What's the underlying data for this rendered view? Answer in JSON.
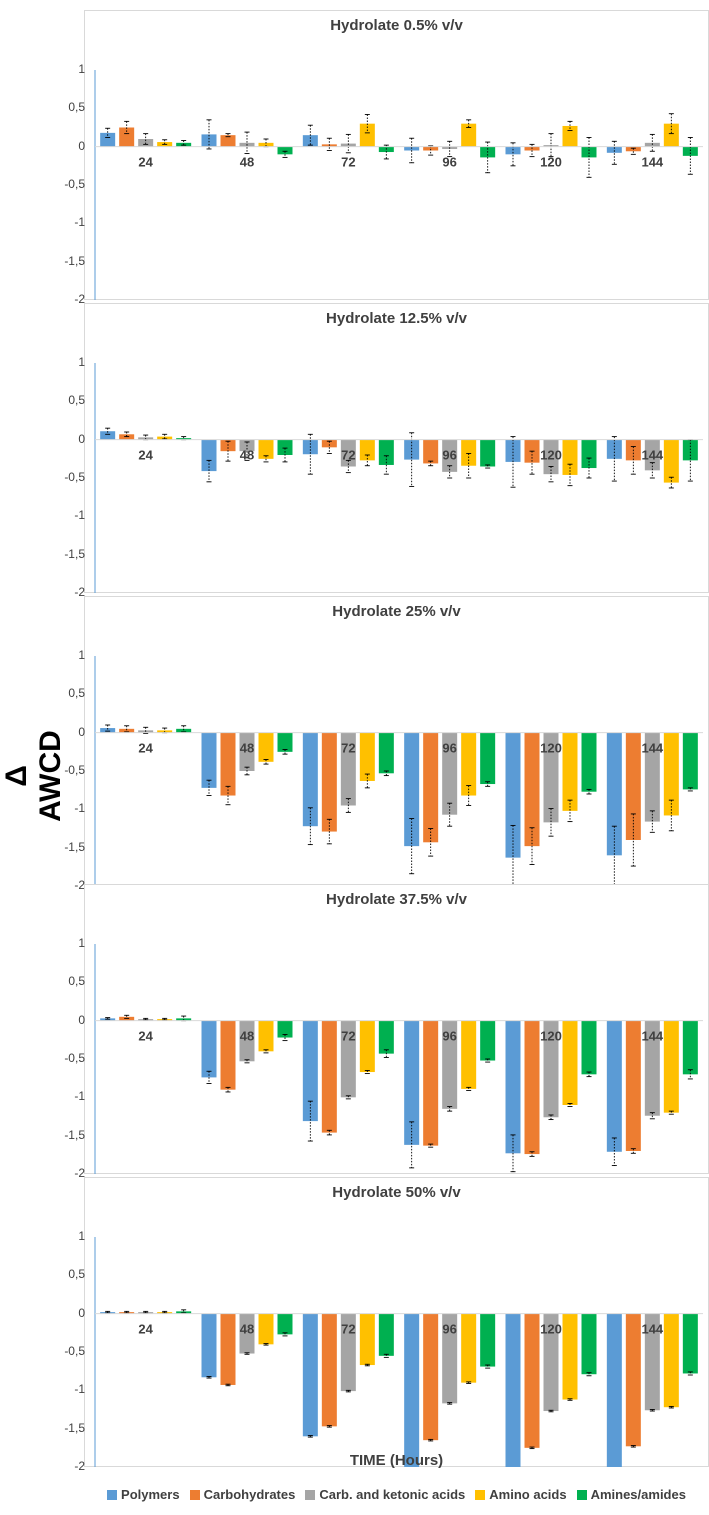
{
  "y_axis_label": "Δ AWCD",
  "x_axis_label": "TIME (Hours)",
  "chart_data": [
    {
      "type": "bar",
      "title": "Hydrolate 0.5% v/v",
      "categories": [
        "24",
        "48",
        "72",
        "96",
        "120",
        "144"
      ],
      "ylim": [
        -2,
        1
      ],
      "yticks": [
        "1",
        "0,5",
        "0",
        "-0,5",
        "-1",
        "-1,5",
        "-2"
      ],
      "grid": false,
      "series": [
        {
          "name": "Polymers",
          "color": "#5b9bd5",
          "values": [
            0.18,
            0.16,
            0.15,
            -0.05,
            -0.1,
            -0.08
          ],
          "errors": [
            0.06,
            0.19,
            0.13,
            0.16,
            0.15,
            0.15
          ]
        },
        {
          "name": "Carbohydrates",
          "color": "#ed7d31",
          "values": [
            0.25,
            0.15,
            0.03,
            -0.05,
            -0.05,
            -0.06
          ],
          "errors": [
            0.08,
            0.02,
            0.08,
            0.06,
            0.08,
            0.04
          ]
        },
        {
          "name": "Carb. and ketonic acids",
          "color": "#a5a5a5",
          "values": [
            0.1,
            0.05,
            0.04,
            -0.03,
            0.02,
            0.05
          ],
          "errors": [
            0.07,
            0.14,
            0.12,
            0.1,
            0.15,
            0.11
          ]
        },
        {
          "name": "Amino acids",
          "color": "#ffc000",
          "values": [
            0.06,
            0.05,
            0.3,
            0.3,
            0.27,
            0.3
          ],
          "errors": [
            0.03,
            0.05,
            0.12,
            0.05,
            0.06,
            0.13
          ]
        },
        {
          "name": "Amines/amides",
          "color": "#00b050",
          "values": [
            0.05,
            -0.1,
            -0.07,
            -0.14,
            -0.14,
            -0.12
          ],
          "errors": [
            0.03,
            0.04,
            0.09,
            0.2,
            0.26,
            0.24
          ]
        }
      ]
    },
    {
      "type": "bar",
      "title": "Hydrolate 12.5% v/v",
      "categories": [
        "24",
        "48",
        "72",
        "96",
        "120",
        "144"
      ],
      "ylim": [
        -2,
        1
      ],
      "yticks": [
        "1",
        "0,5",
        "0",
        "-0,5",
        "-1",
        "-1,5",
        "-2"
      ],
      "grid": false,
      "series": [
        {
          "name": "Polymers",
          "color": "#5b9bd5",
          "values": [
            0.11,
            -0.41,
            -0.19,
            -0.26,
            -0.29,
            -0.25
          ],
          "errors": [
            0.04,
            0.14,
            0.26,
            0.35,
            0.33,
            0.29
          ]
        },
        {
          "name": "Carbohydrates",
          "color": "#ed7d31",
          "values": [
            0.07,
            -0.15,
            -0.1,
            -0.31,
            -0.3,
            -0.27
          ],
          "errors": [
            0.03,
            0.13,
            0.08,
            0.03,
            0.15,
            0.18
          ]
        },
        {
          "name": "Carb. and ketonic acids",
          "color": "#a5a5a5",
          "values": [
            0.03,
            -0.15,
            -0.35,
            -0.42,
            -0.45,
            -0.4
          ],
          "errors": [
            0.03,
            0.12,
            0.08,
            0.08,
            0.1,
            0.1
          ]
        },
        {
          "name": "Amino acids",
          "color": "#ffc000",
          "values": [
            0.04,
            -0.25,
            -0.27,
            -0.34,
            -0.46,
            -0.56
          ],
          "errors": [
            0.03,
            0.04,
            0.07,
            0.16,
            0.14,
            0.07
          ]
        },
        {
          "name": "Amines/amides",
          "color": "#00b050",
          "values": [
            0.02,
            -0.2,
            -0.33,
            -0.35,
            -0.37,
            -0.27
          ],
          "errors": [
            0.02,
            0.09,
            0.12,
            0.02,
            0.13,
            0.27
          ]
        }
      ]
    },
    {
      "type": "bar",
      "title": "Hydrolate 25% v/v",
      "categories": [
        "24",
        "48",
        "72",
        "96",
        "120",
        "144"
      ],
      "ylim": [
        -2,
        1
      ],
      "yticks": [
        "1",
        "0,5",
        "0",
        "-0,5",
        "-1",
        "-1,5",
        "-2"
      ],
      "grid": false,
      "series": [
        {
          "name": "Polymers",
          "color": "#5b9bd5",
          "values": [
            0.06,
            -0.72,
            -1.22,
            -1.48,
            -1.63,
            -1.6
          ],
          "errors": [
            0.04,
            0.1,
            0.24,
            0.36,
            0.42,
            0.38
          ]
        },
        {
          "name": "Carbohydrates",
          "color": "#ed7d31",
          "values": [
            0.05,
            -0.82,
            -1.29,
            -1.43,
            -1.48,
            -1.4
          ],
          "errors": [
            0.04,
            0.12,
            0.16,
            0.18,
            0.24,
            0.34
          ]
        },
        {
          "name": "Carb. and ketonic acids",
          "color": "#a5a5a5",
          "values": [
            0.03,
            -0.5,
            -0.95,
            -1.07,
            -1.17,
            -1.16
          ],
          "errors": [
            0.04,
            0.05,
            0.09,
            0.15,
            0.18,
            0.14
          ]
        },
        {
          "name": "Amino acids",
          "color": "#ffc000",
          "values": [
            0.03,
            -0.38,
            -0.63,
            -0.82,
            -1.02,
            -1.08
          ],
          "errors": [
            0.03,
            0.03,
            0.09,
            0.13,
            0.14,
            0.2
          ]
        },
        {
          "name": "Amines/amides",
          "color": "#00b050",
          "values": [
            0.05,
            -0.25,
            -0.53,
            -0.67,
            -0.77,
            -0.74
          ],
          "errors": [
            0.04,
            0.03,
            0.03,
            0.03,
            0.03,
            0.02
          ]
        }
      ]
    },
    {
      "type": "bar",
      "title": "Hydrolate 37.5% v/v",
      "categories": [
        "24",
        "48",
        "72",
        "96",
        "120",
        "144"
      ],
      "ylim": [
        -2,
        1
      ],
      "yticks": [
        "1",
        "0,5",
        "0",
        "-0,5",
        "-1",
        "-1,5",
        "-2"
      ],
      "grid": false,
      "series": [
        {
          "name": "Polymers",
          "color": "#5b9bd5",
          "values": [
            0.03,
            -0.74,
            -1.31,
            -1.62,
            -1.73,
            -1.71
          ],
          "errors": [
            0.01,
            0.08,
            0.26,
            0.3,
            0.24,
            0.18
          ]
        },
        {
          "name": "Carbohydrates",
          "color": "#ed7d31",
          "values": [
            0.05,
            -0.9,
            -1.46,
            -1.63,
            -1.74,
            -1.7
          ],
          "errors": [
            0.02,
            0.03,
            0.03,
            0.02,
            0.03,
            0.03
          ]
        },
        {
          "name": "Carb. and ketonic acids",
          "color": "#a5a5a5",
          "values": [
            0.02,
            -0.53,
            -1.0,
            -1.15,
            -1.26,
            -1.24
          ],
          "errors": [
            0.01,
            0.02,
            0.02,
            0.03,
            0.03,
            0.04
          ]
        },
        {
          "name": "Amino acids",
          "color": "#ffc000",
          "values": [
            0.02,
            -0.4,
            -0.67,
            -0.89,
            -1.1,
            -1.2
          ],
          "errors": [
            0.01,
            0.02,
            0.02,
            0.02,
            0.02,
            0.02
          ]
        },
        {
          "name": "Amines/amides",
          "color": "#00b050",
          "values": [
            0.03,
            -0.22,
            -0.43,
            -0.52,
            -0.7,
            -0.7
          ],
          "errors": [
            0.03,
            0.04,
            0.05,
            0.02,
            0.03,
            0.06
          ]
        }
      ]
    },
    {
      "type": "bar",
      "title": "Hydrolate 50% v/v",
      "categories": [
        "24",
        "48",
        "72",
        "96",
        "120",
        "144"
      ],
      "ylim": [
        -2,
        1
      ],
      "yticks": [
        "1",
        "0,5",
        "0",
        "-0,5",
        "-1",
        "-1,5",
        "-2"
      ],
      "grid": false,
      "series": [
        {
          "name": "Polymers",
          "color": "#5b9bd5",
          "values": [
            0.02,
            -0.83,
            -1.6,
            -2.0,
            -2.0,
            -2.0
          ],
          "errors": [
            0.01,
            0.01,
            0.01,
            0.0,
            0.0,
            0.0
          ]
        },
        {
          "name": "Carbohydrates",
          "color": "#ed7d31",
          "values": [
            0.02,
            -0.93,
            -1.47,
            -1.65,
            -1.75,
            -1.73
          ],
          "errors": [
            0.01,
            0.01,
            0.01,
            0.01,
            0.01,
            0.01
          ]
        },
        {
          "name": "Carb. and ketonic acids",
          "color": "#a5a5a5",
          "values": [
            0.02,
            -0.52,
            -1.01,
            -1.17,
            -1.27,
            -1.26
          ],
          "errors": [
            0.01,
            0.01,
            0.01,
            0.01,
            0.01,
            0.01
          ]
        },
        {
          "name": "Amino acids",
          "color": "#ffc000",
          "values": [
            0.02,
            -0.4,
            -0.67,
            -0.9,
            -1.12,
            -1.22
          ],
          "errors": [
            0.01,
            0.01,
            0.01,
            0.01,
            0.01,
            0.01
          ]
        },
        {
          "name": "Amines/amides",
          "color": "#00b050",
          "values": [
            0.03,
            -0.27,
            -0.55,
            -0.69,
            -0.79,
            -0.78
          ],
          "errors": [
            0.02,
            0.02,
            0.02,
            0.02,
            0.02,
            0.02
          ]
        }
      ]
    }
  ]
}
